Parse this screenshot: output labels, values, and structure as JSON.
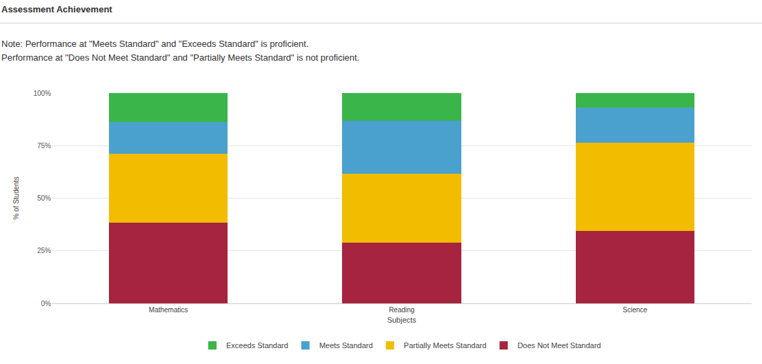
{
  "chart_data": {
    "type": "bar",
    "title": "Assessment Achievement",
    "annotations": [
      "Note: Performance at \"Meets Standard\" and \"Exceeds Standard\" is proficient.",
      "Performance at \"Does Not Meet Standard\" and \"Partially Meets Standard\" is not proficient."
    ],
    "x_label": "Subjects",
    "y_label": "% of Students",
    "categories": [
      "Mathematics",
      "Reading",
      "Science"
    ],
    "stacked": true,
    "grid": true,
    "legend": "bottom",
    "ylim": [
      0,
      100
    ],
    "yticks": [
      {
        "value": 0,
        "label": "0%"
      },
      {
        "value": 25,
        "label": "25%"
      },
      {
        "value": 50,
        "label": "50%"
      },
      {
        "value": 75,
        "label": "75%"
      },
      {
        "value": 100,
        "label": "100%"
      }
    ],
    "series": [
      {
        "name": "Exceeds Standard",
        "color": "#3ab54a",
        "values": [
          13.7,
          13.1,
          7.0
        ]
      },
      {
        "name": "Meets Standard",
        "color": "#4aa1cd",
        "values": [
          15.0,
          25.4,
          16.6
        ]
      },
      {
        "name": "Partially Meets Standard",
        "color": "#f2bc00",
        "values": [
          32.8,
          32.8,
          42.0
        ]
      },
      {
        "name": "Does Not Meet Standard",
        "color": "#a6243f",
        "values": [
          38.5,
          28.7,
          34.4
        ]
      }
    ]
  }
}
